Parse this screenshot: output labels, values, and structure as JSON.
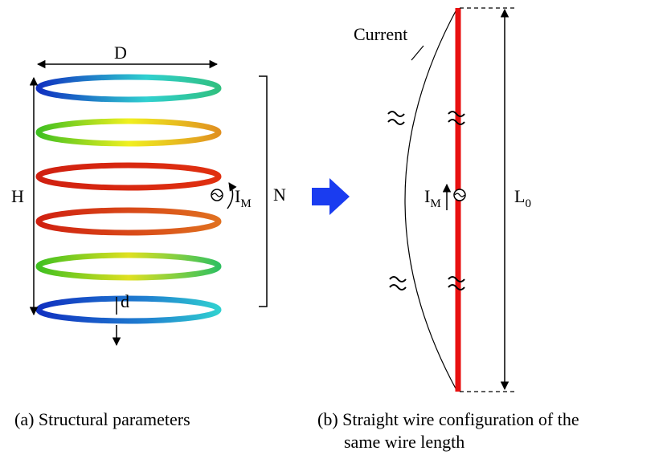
{
  "labels": {
    "diameter": "D",
    "height": "H",
    "wire_diameter": "d",
    "turns": "N",
    "source_left": {
      "main": "I",
      "sub": "M"
    },
    "current": "Current",
    "source_right": {
      "main": "I",
      "sub": "M"
    },
    "length": {
      "main": "L",
      "sub": "0"
    }
  },
  "captions": {
    "a": "(a) Structural parameters",
    "b_line1": "(b) Straight wire configuration of the",
    "b_line2": "same wire length"
  }
}
